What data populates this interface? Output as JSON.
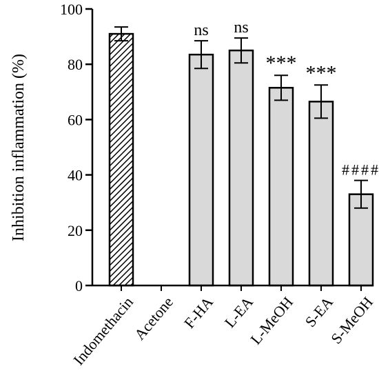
{
  "chart_data": {
    "type": "bar",
    "ylabel": "Inhibition inflammation (%)",
    "ylim": [
      0,
      100
    ],
    "yticks": [
      0,
      20,
      40,
      60,
      80,
      100
    ],
    "categories": [
      "Indomethacin",
      "Acetone",
      "F-HA",
      "L-EA",
      "L-MeOH",
      "S-EA",
      "S-MeOH"
    ],
    "values": [
      91,
      0,
      83.5,
      85,
      71.5,
      66.5,
      33
    ],
    "errors": [
      2.5,
      0,
      5,
      4.5,
      4.5,
      6,
      5
    ],
    "annotations": [
      "",
      "",
      "ns",
      "ns",
      "***",
      "***",
      "####"
    ],
    "patterns": [
      "hatched",
      "none",
      "solid",
      "solid",
      "solid",
      "solid",
      "solid"
    ],
    "colors": {
      "bar_fill": "#d9d9d9",
      "bar_stroke": "#000000",
      "axis": "#000000"
    }
  }
}
